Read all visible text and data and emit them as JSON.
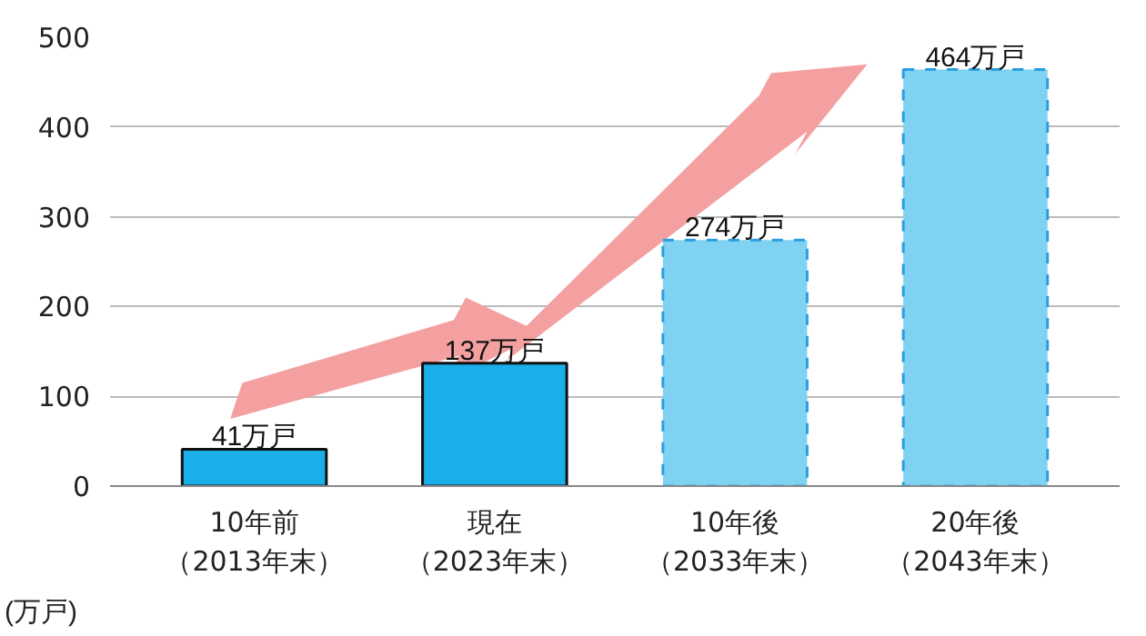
{
  "chart_data": {
    "type": "bar",
    "ylabel": "(万戸)",
    "categories": [
      "10年前（2013年末）",
      "現在（2023年末）",
      "10年後（2033年末）",
      "20年後（2043年末）"
    ],
    "series": [
      {
        "color": "#1aaeea",
        "line_style": "solid",
        "values": [
          41,
          137,
          null,
          null
        ],
        "value_labels": [
          "41万戸",
          "137万戸",
          null,
          null
        ]
      },
      {
        "color": "#80d2f2",
        "line_style": "dashed",
        "values": [
          null,
          null,
          274,
          464
        ],
        "value_labels": [
          null,
          null,
          "274万戸",
          "464万戸"
        ]
      }
    ],
    "ylim": [
      0,
      500
    ],
    "yticks": [
      0,
      100,
      200,
      300,
      400,
      500
    ],
    "grid": "y"
  }
}
